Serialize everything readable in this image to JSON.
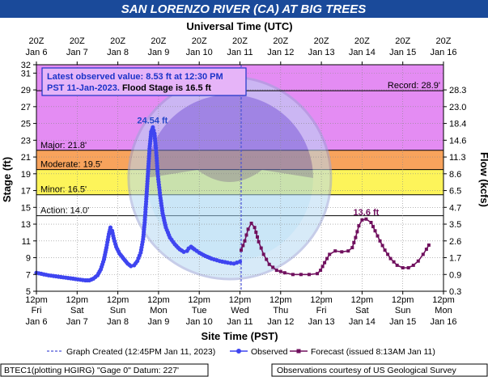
{
  "title": "SAN LORENZO RIVER (CA) AT BIG TREES",
  "top_axis_title": "Universal Time (UTC)",
  "bottom_axis_title": "Site Time (PST)",
  "left_axis_title": "Stage (ft)",
  "right_axis_title": "Flow (kcfs)",
  "info_box": {
    "line1": "Latest observed value: 8.53 ft at 12:30 PM",
    "line2_date": "PST 11-Jan-2023.",
    "line2_flood": " Flood Stage is 16.5 ft"
  },
  "colors": {
    "title_bg": "#1a4a9a",
    "record_zone": "#e48cf3",
    "major_zone": "#f46d5d",
    "moderate_zone": "#f8a35c",
    "minor_zone": "#fdf45a",
    "observed": "#3f45f0",
    "forecast": "#70105e",
    "info_text": "#1a33c8",
    "peak_label": "#2646c9",
    "created_line": "#4b54d8"
  },
  "legend": {
    "created": "Graph Created (12:45PM Jan 11, 2023)",
    "observed": "Observed",
    "forecast": "Forecast (issued 8:13AM Jan 11)"
  },
  "footer_left": "BTEC1(plotting HGIRG) \"Gage 0\" Datum: 227'",
  "footer_right": "Observations courtesy of US Geological Survey",
  "chart_data": {
    "type": "line",
    "x_unit": "days since Jan 6 12pm PST",
    "xlim": [
      0,
      10
    ],
    "ylim": [
      5,
      32
    ],
    "y_ticks": [
      5,
      7,
      9,
      11,
      13,
      15,
      17,
      19,
      21,
      23,
      25,
      27,
      29,
      31,
      32
    ],
    "flow_ticks": [
      {
        "label": "0.3",
        "stage": 5
      },
      {
        "label": "0.9",
        "stage": 7
      },
      {
        "label": "1.7",
        "stage": 9
      },
      {
        "label": "2.6",
        "stage": 11
      },
      {
        "label": "3.5",
        "stage": 13
      },
      {
        "label": "4.7",
        "stage": 15
      },
      {
        "label": "6.5",
        "stage": 17
      },
      {
        "label": "8.6",
        "stage": 19
      },
      {
        "label": "11.3",
        "stage": 21
      },
      {
        "label": "14.6",
        "stage": 23
      },
      {
        "label": "18.4",
        "stage": 25
      },
      {
        "label": "23.0",
        "stage": 27
      },
      {
        "label": "28.3",
        "stage": 29
      }
    ],
    "top_ticks": [
      {
        "l1": "20Z",
        "l2": "Jan 6"
      },
      {
        "l1": "20Z",
        "l2": "Jan 7"
      },
      {
        "l1": "20Z",
        "l2": "Jan 8"
      },
      {
        "l1": "20Z",
        "l2": "Jan 9"
      },
      {
        "l1": "20Z",
        "l2": "Jan 10"
      },
      {
        "l1": "20Z",
        "l2": "Jan 11"
      },
      {
        "l1": "20Z",
        "l2": "Jan 12"
      },
      {
        "l1": "20Z",
        "l2": "Jan 13"
      },
      {
        "l1": "20Z",
        "l2": "Jan 14"
      },
      {
        "l1": "20Z",
        "l2": "Jan 15"
      },
      {
        "l1": "20Z",
        "l2": "Jan 16"
      }
    ],
    "bottom_ticks": [
      {
        "l1": "12pm",
        "l2": "Fri",
        "l3": "Jan 6"
      },
      {
        "l1": "12pm",
        "l2": "Sat",
        "l3": "Jan 7"
      },
      {
        "l1": "12pm",
        "l2": "Sun",
        "l3": "Jan 8"
      },
      {
        "l1": "12pm",
        "l2": "Mon",
        "l3": "Jan 9"
      },
      {
        "l1": "12pm",
        "l2": "Tue",
        "l3": "Jan 10"
      },
      {
        "l1": "12pm",
        "l2": "Wed",
        "l3": "Jan 11"
      },
      {
        "l1": "12pm",
        "l2": "Thu",
        "l3": "Jan 12"
      },
      {
        "l1": "12pm",
        "l2": "Fri",
        "l3": "Jan 13"
      },
      {
        "l1": "12pm",
        "l2": "Sat",
        "l3": "Jan 14"
      },
      {
        "l1": "12pm",
        "l2": "Sun",
        "l3": "Jan 15"
      },
      {
        "l1": "12pm",
        "l2": "Mon",
        "l3": "Jan 16"
      }
    ],
    "zones": [
      {
        "name": "Action",
        "label": "Action: 14.0'",
        "from": 14.0,
        "to": 16.5,
        "color": "#ffffff"
      },
      {
        "name": "Minor",
        "label": "Minor: 16.5'",
        "from": 16.5,
        "to": 19.5,
        "color": "#fdf45a"
      },
      {
        "name": "Moderate",
        "label": "Moderate: 19.5'",
        "from": 19.5,
        "to": 21.8,
        "color": "#f8a35c"
      },
      {
        "name": "Major",
        "label": "Major: 21.8'",
        "from": 21.8,
        "to": 32,
        "color": "#f46d5d"
      }
    ],
    "record": {
      "label": "Record: 28.9'",
      "value": 28.9
    },
    "graph_created_x": 5.03,
    "annotations": [
      {
        "text": "24.54 ft",
        "x": 2.85,
        "y": 24.54
      },
      {
        "text": "13.6 ft",
        "x": 8.1,
        "y": 13.6
      }
    ],
    "series": [
      {
        "name": "Observed",
        "points": [
          [
            0.0,
            7.2
          ],
          [
            0.3,
            6.9
          ],
          [
            0.6,
            6.7
          ],
          [
            0.9,
            6.5
          ],
          [
            1.2,
            6.3
          ],
          [
            1.3,
            6.3
          ],
          [
            1.4,
            6.5
          ],
          [
            1.5,
            6.9
          ],
          [
            1.58,
            7.6
          ],
          [
            1.66,
            8.8
          ],
          [
            1.72,
            10.2
          ],
          [
            1.78,
            11.8
          ],
          [
            1.82,
            12.6
          ],
          [
            1.86,
            12.2
          ],
          [
            1.9,
            11.3
          ],
          [
            1.96,
            10.3
          ],
          [
            2.04,
            9.5
          ],
          [
            2.14,
            8.9
          ],
          [
            2.24,
            8.3
          ],
          [
            2.32,
            8.0
          ],
          [
            2.4,
            8.1
          ],
          [
            2.48,
            8.6
          ],
          [
            2.56,
            9.6
          ],
          [
            2.62,
            11.2
          ],
          [
            2.66,
            13.2
          ],
          [
            2.7,
            16.0
          ],
          [
            2.74,
            19.0
          ],
          [
            2.78,
            22.0
          ],
          [
            2.82,
            24.0
          ],
          [
            2.86,
            24.54
          ],
          [
            2.9,
            23.8
          ],
          [
            2.94,
            21.8
          ],
          [
            2.98,
            19.0
          ],
          [
            3.04,
            16.4
          ],
          [
            3.1,
            14.3
          ],
          [
            3.18,
            12.6
          ],
          [
            3.28,
            11.4
          ],
          [
            3.4,
            10.6
          ],
          [
            3.52,
            10.0
          ],
          [
            3.62,
            9.7
          ],
          [
            3.7,
            9.8
          ],
          [
            3.74,
            10.1
          ],
          [
            3.8,
            10.3
          ],
          [
            3.88,
            10.0
          ],
          [
            4.0,
            9.6
          ],
          [
            4.15,
            9.2
          ],
          [
            4.3,
            8.9
          ],
          [
            4.5,
            8.6
          ],
          [
            4.7,
            8.4
          ],
          [
            4.85,
            8.3
          ],
          [
            5.0,
            8.53
          ]
        ]
      },
      {
        "name": "Forecast",
        "points": [
          [
            5.03,
            9.9
          ],
          [
            5.12,
            11.0
          ],
          [
            5.2,
            12.4
          ],
          [
            5.28,
            13.1
          ],
          [
            5.36,
            12.6
          ],
          [
            5.46,
            10.9
          ],
          [
            5.58,
            9.4
          ],
          [
            5.72,
            8.2
          ],
          [
            5.9,
            7.5
          ],
          [
            6.1,
            7.2
          ],
          [
            6.3,
            7.0
          ],
          [
            6.5,
            7.0
          ],
          [
            6.7,
            7.0
          ],
          [
            6.9,
            7.1
          ],
          [
            6.98,
            7.5
          ],
          [
            7.08,
            8.4
          ],
          [
            7.2,
            9.4
          ],
          [
            7.34,
            9.8
          ],
          [
            7.5,
            9.7
          ],
          [
            7.66,
            9.8
          ],
          [
            7.76,
            10.2
          ],
          [
            7.84,
            11.4
          ],
          [
            7.92,
            12.8
          ],
          [
            8.0,
            13.5
          ],
          [
            8.1,
            13.6
          ],
          [
            8.22,
            13.2
          ],
          [
            8.32,
            12.2
          ],
          [
            8.44,
            11.0
          ],
          [
            8.56,
            9.9
          ],
          [
            8.7,
            8.9
          ],
          [
            8.86,
            8.1
          ],
          [
            9.0,
            7.8
          ],
          [
            9.14,
            7.8
          ],
          [
            9.26,
            8.1
          ],
          [
            9.38,
            8.6
          ],
          [
            9.5,
            9.4
          ],
          [
            9.58,
            10.0
          ],
          [
            9.64,
            10.5
          ]
        ]
      }
    ]
  }
}
